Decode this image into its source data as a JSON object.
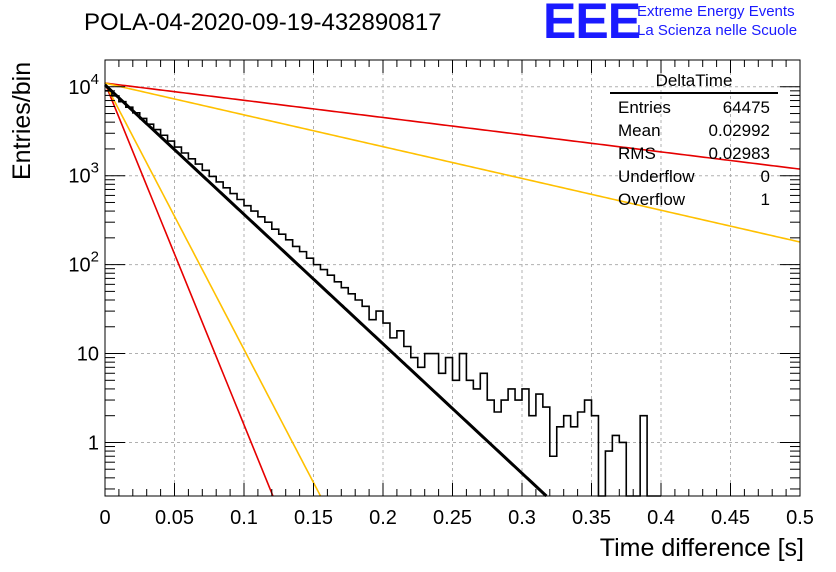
{
  "chart_data": {
    "type": "histogram",
    "title": "POLA-04-2020-09-19-432890817",
    "xlabel": "Time difference [s]",
    "ylabel": "Entries/bin",
    "xlim": [
      0,
      0.5
    ],
    "ylim": [
      0.25,
      20000
    ],
    "yscale": "log",
    "grid": true,
    "x_ticks": [
      "0",
      "0.05",
      "0.1",
      "0.15",
      "0.2",
      "0.25",
      "0.3",
      "0.35",
      "0.4",
      "0.45",
      "0.5"
    ],
    "y_ticks": [
      {
        "value": 1,
        "base": "1",
        "exp": ""
      },
      {
        "value": 10,
        "base": "10",
        "exp": ""
      },
      {
        "value": 100,
        "base": "10",
        "exp": "2"
      },
      {
        "value": 1000,
        "base": "10",
        "exp": "3"
      },
      {
        "value": 10000,
        "base": "10",
        "exp": "4"
      }
    ],
    "bin_width": 0.005,
    "histogram": {
      "name": "DeltaTime",
      "bin_start": 0,
      "values": [
        9000,
        7900,
        6800,
        5900,
        5100,
        4400,
        3800,
        3300,
        2850,
        2450,
        2100,
        1800,
        1550,
        1350,
        1150,
        980,
        850,
        730,
        630,
        540,
        460,
        400,
        345,
        300,
        250,
        220,
        190,
        160,
        140,
        118,
        100,
        88,
        76,
        64,
        55,
        47,
        40,
        34,
        24,
        30,
        22,
        15,
        18,
        12,
        9,
        7,
        10,
        10,
        6,
        9,
        5,
        10,
        5,
        4,
        6,
        3,
        2.2,
        3,
        4,
        3,
        4,
        2,
        3.5,
        2.5,
        0.7,
        1.5,
        2,
        1.5,
        2.2,
        3,
        2,
        0.1,
        0.8,
        1.2,
        1,
        0.1,
        0.1,
        2,
        0.1,
        0.1
      ]
    },
    "fits": [
      {
        "color": "#000000",
        "width": 3,
        "y0": 10500,
        "tau": 0.02983,
        "xmax": 0.323
      },
      {
        "color": "#e60000",
        "width": 1.6,
        "y0": 11000,
        "tau": 0.0113,
        "xmax": 0.5
      },
      {
        "color": "#ffc000",
        "width": 1.6,
        "y0": 11000,
        "tau": 0.0145,
        "xmax": 0.5
      },
      {
        "color": "#e60000",
        "width": 1.6,
        "y0": 11000,
        "tau": 0.2245,
        "xmax": 0.5
      },
      {
        "color": "#ffc000",
        "width": 1.6,
        "y0": 11000,
        "tau": 0.1215,
        "xmax": 0.5
      }
    ],
    "stats_box": {
      "title": "DeltaTime",
      "rows": [
        {
          "label": "Entries",
          "value": "64475"
        },
        {
          "label": "Mean",
          "value": "0.02992"
        },
        {
          "label": "RMS",
          "value": "0.02983"
        },
        {
          "label": "Underflow",
          "value": "0"
        },
        {
          "label": "Overflow",
          "value": "1"
        }
      ]
    }
  },
  "logo": {
    "mark": "EEE",
    "line1": "Extreme Energy Events",
    "line2": "La Scienza nelle Scuole",
    "color": "#1a1aff"
  }
}
